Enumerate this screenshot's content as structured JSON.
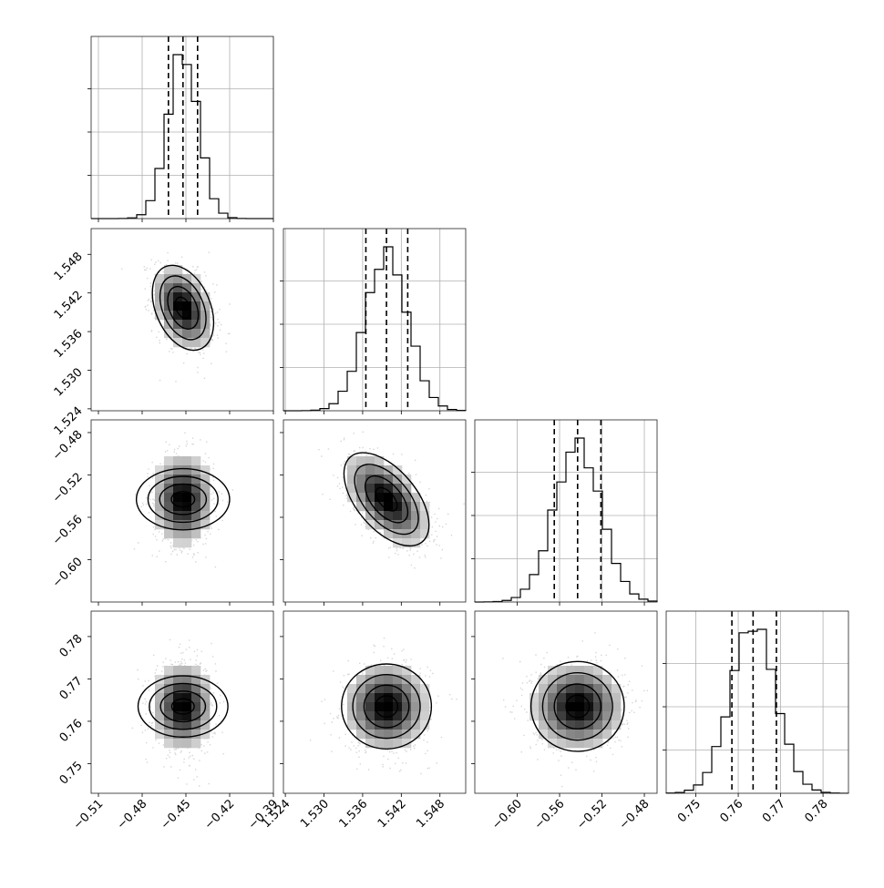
{
  "chart_data": {
    "type": "corner",
    "title": "",
    "parameters": [
      {
        "index": 0,
        "median": -0.452,
        "q16": -0.462,
        "q84": -0.442,
        "sigma": 0.0105,
        "lim": [
          -0.515,
          -0.39
        ],
        "ticks": [
          -0.51,
          -0.48,
          -0.45,
          -0.42,
          -0.39
        ],
        "tick_labels": [
          "−0.51",
          "−0.48",
          "−0.45",
          "−0.42",
          "−0.39"
        ]
      },
      {
        "index": 1,
        "median": 1.5397,
        "q16": 1.5365,
        "q84": 1.543,
        "sigma": 0.0033,
        "lim": [
          1.5237,
          1.552
        ],
        "ticks": [
          1.524,
          1.53,
          1.536,
          1.542,
          1.548
        ],
        "tick_labels": [
          "1.524",
          "1.530",
          "1.536",
          "1.542",
          "1.548"
        ]
      },
      {
        "index": 2,
        "median": -0.543,
        "q16": -0.565,
        "q84": -0.521,
        "sigma": 0.022,
        "lim": [
          -0.64,
          -0.468
        ],
        "ticks": [
          -0.6,
          -0.56,
          -0.52,
          -0.48
        ],
        "tick_labels": [
          "−0.60",
          "−0.56",
          "−0.52",
          "−0.48"
        ]
      },
      {
        "index": 3,
        "median": 0.7635,
        "q16": 0.7585,
        "q84": 0.769,
        "sigma": 0.0053,
        "lim": [
          0.743,
          0.786
        ],
        "ticks": [
          0.75,
          0.76,
          0.77,
          0.78
        ],
        "tick_labels": [
          "0.75",
          "0.76",
          "0.77",
          "0.78"
        ]
      }
    ],
    "correlations": [
      {
        "x": 0,
        "y": 1,
        "rho": -0.35
      },
      {
        "x": 0,
        "y": 2,
        "rho": 0.0
      },
      {
        "x": 1,
        "y": 2,
        "rho": -0.55
      },
      {
        "x": 0,
        "y": 3,
        "rho": 0.0
      },
      {
        "x": 1,
        "y": 3,
        "rho": 0.0
      },
      {
        "x": 2,
        "y": 3,
        "rho": 0.0
      }
    ],
    "histogram_bins": 20,
    "contour_levels": [
      0.5,
      1.0,
      1.5,
      2.0
    ],
    "quantiles": [
      0.16,
      0.5,
      0.84
    ],
    "grid": true,
    "colors": {
      "line": "#000000",
      "scatter": "#b4b4b4",
      "grid": "#b0b0b0"
    }
  }
}
